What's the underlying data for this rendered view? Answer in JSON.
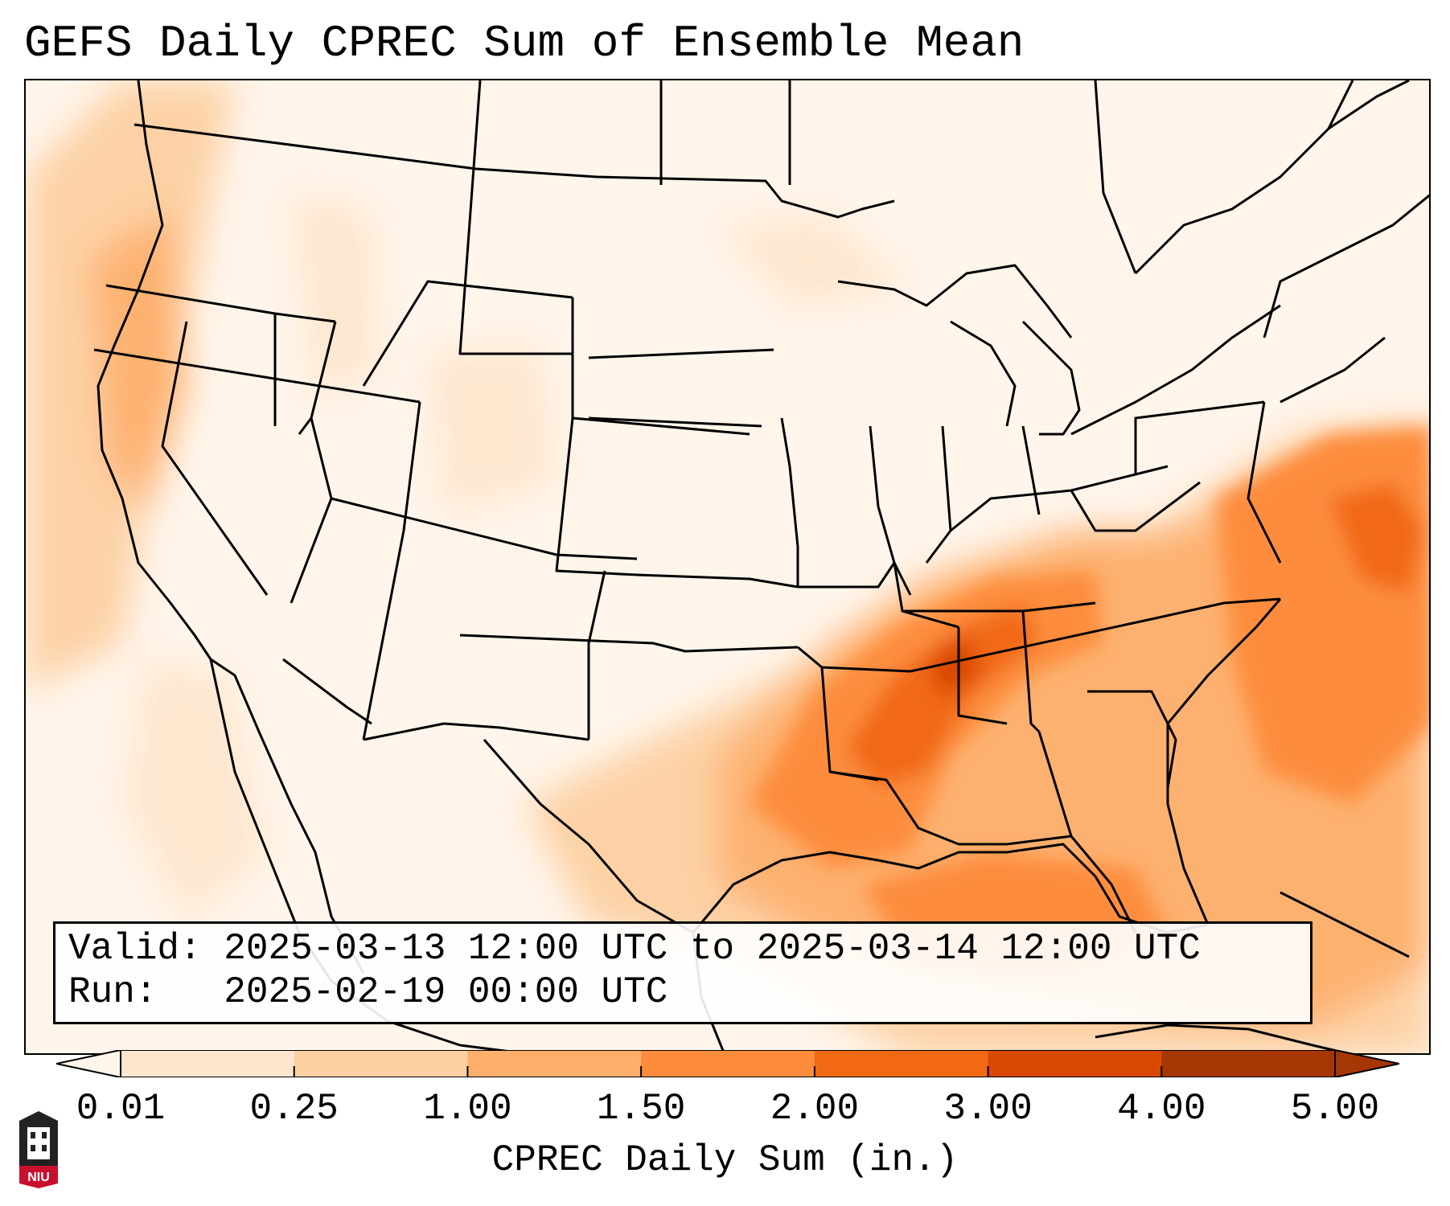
{
  "title": "GEFS Daily CPREC Sum of Ensemble Mean",
  "info": {
    "valid_label": "Valid:",
    "valid_value": "2025-03-13 12:00 UTC to 2025-03-14 12:00 UTC",
    "run_label": "Run:",
    "run_value": "2025-02-19 00:00 UTC"
  },
  "colorbar": {
    "label": "CPREC Daily Sum (in.)",
    "ticks": [
      "0.01",
      "0.25",
      "1.00",
      "1.50",
      "2.00",
      "3.00",
      "4.00",
      "5.00"
    ],
    "colors": [
      "#fff5eb",
      "#fee6ce",
      "#fdd0a2",
      "#fdae6b",
      "#fd8d3c",
      "#f16913",
      "#d94801",
      "#a63603"
    ],
    "extend": "both"
  },
  "logo": {
    "text": "NIU",
    "colors": {
      "shield": "#222222",
      "band": "#c8102e"
    }
  }
}
